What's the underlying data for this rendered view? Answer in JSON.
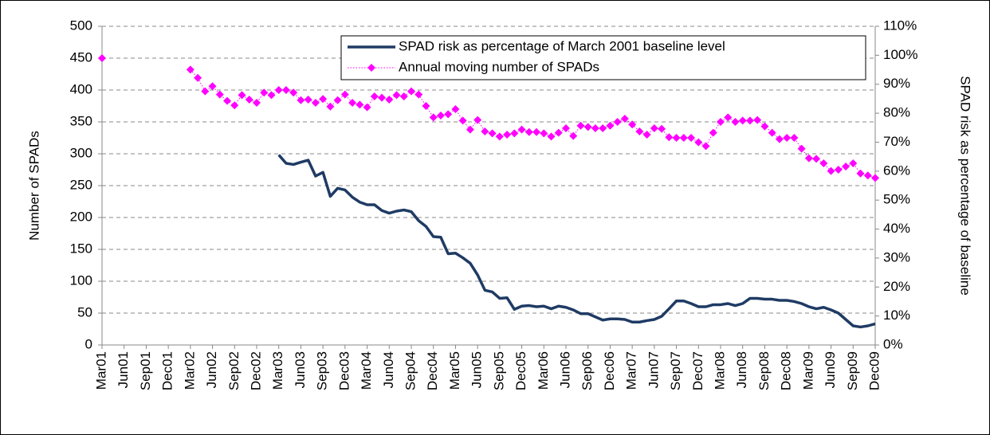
{
  "chart_data": {
    "type": "line",
    "y_label": "Number of SPADs",
    "y2_label": "SPAD risk as percentage of baseline",
    "categories": [
      "Mar01",
      null,
      null,
      "Jun01",
      null,
      null,
      "Sep01",
      null,
      null,
      "Dec01",
      null,
      null,
      "Mar02",
      null,
      null,
      "Jun02",
      null,
      null,
      "Sep02",
      null,
      null,
      "Dec02",
      null,
      null,
      "Mar03",
      null,
      null,
      "Jun03",
      null,
      null,
      "Sep03",
      null,
      null,
      "Dec03",
      null,
      null,
      "Mar04",
      null,
      null,
      "Jun04",
      null,
      null,
      "Sep04",
      null,
      null,
      "Dec04",
      null,
      null,
      "Mar05",
      null,
      null,
      "Jun05",
      null,
      null,
      "Sep05",
      null,
      null,
      "Dec05",
      null,
      null,
      "Mar06",
      null,
      null,
      "Jun06",
      null,
      null,
      "Sep06",
      null,
      null,
      "Dec06",
      null,
      null,
      "Mar07",
      null,
      null,
      "Jun07",
      null,
      null,
      "Sep07",
      null,
      null,
      "Dec07",
      null,
      null,
      "Mar08",
      null,
      null,
      "Jun08",
      null,
      null,
      "Sep08",
      null,
      null,
      "Dec08",
      null,
      null,
      "Mar09",
      null,
      null,
      "Jun09",
      null,
      null,
      "Sep09",
      null,
      null,
      "Dec09"
    ],
    "series": [
      {
        "name": "SPAD risk as percentage of March 2001 baseline level",
        "color": "#1f3b64",
        "axis": "y2",
        "values": [
          null,
          null,
          null,
          null,
          null,
          null,
          null,
          null,
          null,
          null,
          null,
          null,
          null,
          null,
          null,
          null,
          null,
          null,
          null,
          null,
          null,
          null,
          null,
          null,
          65.6,
          62.7,
          62.3,
          63.1,
          63.8,
          58.3,
          59.6,
          51.3,
          54.1,
          53.5,
          51.0,
          49.3,
          48.4,
          48.4,
          46.4,
          45.5,
          46.2,
          46.6,
          46.0,
          42.9,
          40.9,
          37.4,
          37.2,
          31.5,
          31.7,
          30.1,
          28.2,
          24.2,
          18.9,
          18.3,
          16.1,
          16.3,
          12.3,
          13.4,
          13.6,
          13.2,
          13.4,
          12.5,
          13.4,
          13.0,
          12.1,
          10.8,
          10.8,
          9.7,
          8.6,
          9.0,
          9.0,
          8.8,
          7.9,
          7.9,
          8.4,
          8.8,
          9.9,
          12.5,
          15.2,
          15.2,
          14.3,
          13.2,
          13.2,
          13.9,
          13.9,
          14.3,
          13.6,
          14.3,
          16.1,
          16.1,
          15.8,
          15.8,
          15.4,
          15.4,
          15.0,
          14.3,
          13.2,
          12.5,
          13.0,
          12.1,
          11.0,
          8.8,
          6.6,
          6.2,
          6.6,
          7.3
        ]
      },
      {
        "name": "Annual moving number of SPADs",
        "color": "#ff00ff",
        "axis": "y",
        "values": [
          450,
          null,
          null,
          null,
          null,
          null,
          null,
          null,
          null,
          null,
          null,
          null,
          432,
          419,
          398,
          406,
          393,
          383,
          376,
          392,
          385,
          380,
          396,
          392,
          400,
          400,
          396,
          384,
          385,
          380,
          386,
          374,
          384,
          393,
          380,
          377,
          373,
          390,
          388,
          385,
          392,
          390,
          398,
          393,
          375,
          357,
          360,
          362,
          370,
          352,
          338,
          353,
          335,
          332,
          327,
          330,
          332,
          338,
          334,
          334,
          332,
          327,
          333,
          340,
          328,
          344,
          342,
          340,
          340,
          344,
          350,
          355,
          346,
          335,
          330,
          340,
          339,
          326,
          325,
          325,
          325,
          318,
          312,
          333,
          350,
          357,
          350,
          352,
          352,
          353,
          343,
          333,
          323,
          325,
          325,
          308,
          293,
          292,
          285,
          273,
          275,
          280,
          285,
          269,
          266,
          262
        ]
      }
    ],
    "ylim": [
      0,
      500
    ],
    "yticks": [
      0,
      50,
      100,
      150,
      200,
      250,
      300,
      350,
      400,
      450,
      500
    ],
    "y2lim": [
      0,
      110
    ],
    "y2ticks": [
      {
        "value": 0,
        "label": "0%"
      },
      {
        "value": 10,
        "label": "10%"
      },
      {
        "value": 20,
        "label": "20%"
      },
      {
        "value": 30,
        "label": "30%"
      },
      {
        "value": 40,
        "label": "40%"
      },
      {
        "value": 50,
        "label": "50%"
      },
      {
        "value": 60,
        "label": "60%"
      },
      {
        "value": 70,
        "label": "70%"
      },
      {
        "value": 80,
        "label": "80%"
      },
      {
        "value": 90,
        "label": "90%"
      },
      {
        "value": 100,
        "label": "100%"
      },
      {
        "value": 110,
        "label": "110%"
      }
    ],
    "grid": true,
    "legend": "top-right"
  }
}
